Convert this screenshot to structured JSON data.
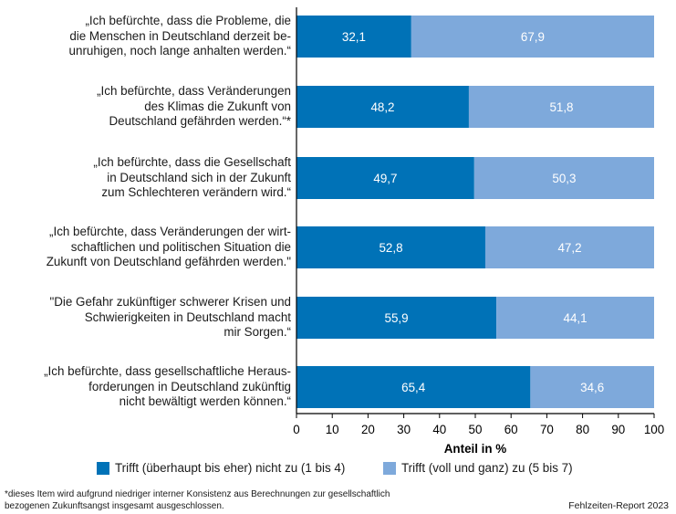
{
  "chart_data": {
    "type": "bar",
    "orientation": "horizontal",
    "stacked": true,
    "categories": [
      [
        "„Ich befürchte, dass die Probleme, die",
        "die Menschen in Deutschland derzeit be-",
        "unruhigen, noch lange anhalten werden.“"
      ],
      [
        "„Ich befürchte, dass Veränderungen",
        "des Klimas die Zukunft von",
        "Deutschland gefährden werden.“*"
      ],
      [
        "„Ich befürchte, dass die Gesellschaft",
        "in Deutschland sich in der Zukunft",
        "zum Schlechteren verändern wird.“"
      ],
      [
        "„Ich befürchte, dass Veränderungen der wirt-",
        "schaftlichen und politischen Situation die",
        "Zukunft von Deutschland gefährden werden.\""
      ],
      [
        "\"Die Gefahr zukünftiger schwerer Krisen und",
        "Schwierigkeiten in Deutschland macht",
        "mir Sorgen.“"
      ],
      [
        "„Ich befürchte, dass gesellschaftliche Heraus-",
        "forderungen in Deutschland zukünftig",
        "nicht bewältigt werden können.“"
      ]
    ],
    "series": [
      {
        "name": "Trifft (überhaupt bis eher) nicht zu (1 bis 4)",
        "color": "#0072B7",
        "values": [
          32.1,
          48.2,
          49.7,
          52.8,
          55.9,
          65.4
        ],
        "labels": [
          "32,1",
          "48,2",
          "49,7",
          "52,8",
          "55,9",
          "65,4"
        ]
      },
      {
        "name": "Trifft (voll und ganz) zu (5 bis 7)",
        "color": "#7EA9DB",
        "values": [
          67.9,
          51.8,
          50.3,
          47.2,
          44.1,
          34.6
        ],
        "labels": [
          "67,9",
          "51,8",
          "50,3",
          "47,2",
          "44,1",
          "34,6"
        ]
      }
    ],
    "xlabel": "Anteil in %",
    "xlim": [
      0,
      100
    ],
    "xticks": [
      "0",
      "10",
      "20",
      "30",
      "40",
      "50",
      "60",
      "70",
      "80",
      "90",
      "100"
    ],
    "grid": false,
    "legend": "bottom"
  },
  "footnote": [
    "*dieses Item wird aufgrund niedriger interner Konsistenz aus  Berechnungen zur gesellschaftlich",
    "bezogenen Zukunftsangst insgesamt ausgeschlossen."
  ],
  "source": "Fehlzeiten-Report 2023"
}
